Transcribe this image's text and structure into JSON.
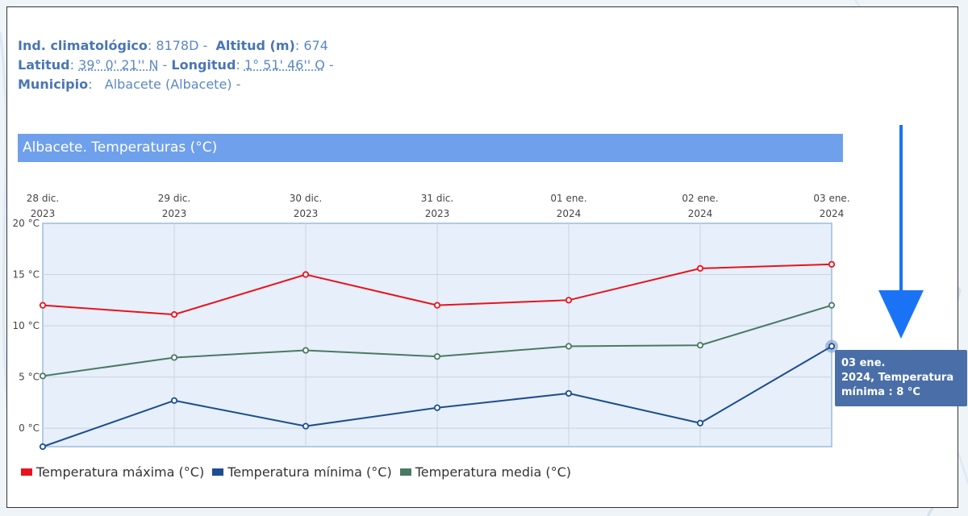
{
  "station": {
    "indicativo_label": "Ind. climatológico",
    "indicativo_value": "8178D",
    "altitud_label": "Altitud (m)",
    "altitud_value": "674",
    "latitud_label": "Latitud",
    "latitud_value": "39° 0' 21'' N",
    "longitud_label": "Longitud",
    "longitud_value": "1° 51' 46'' O",
    "municipio_label": "Municipio",
    "municipio_value": "Albacete (Albacete)",
    "separator": " -"
  },
  "colors": {
    "max": "#e8131c",
    "min": "#1d4e8f",
    "media": "#4a7a63",
    "plot_bg": "#e7effa",
    "header": "#6fa0ec",
    "arrow": "#1a73f5"
  },
  "chart_data": {
    "type": "line",
    "title": "Albacete. Temperaturas (°C)",
    "x": [
      {
        "line1": "28 dic.",
        "line2": "2023"
      },
      {
        "line1": "29 dic.",
        "line2": "2023"
      },
      {
        "line1": "30 dic.",
        "line2": "2023"
      },
      {
        "line1": "31 dic.",
        "line2": "2023"
      },
      {
        "line1": "01 ene.",
        "line2": "2024"
      },
      {
        "line1": "02 ene.",
        "line2": "2024"
      },
      {
        "line1": "03 ene.",
        "line2": "2024"
      }
    ],
    "yticks": [
      "20 °C",
      "15 °C",
      "10 °C",
      "5 °C",
      "0 °C"
    ],
    "ylim": [
      -1.8,
      20
    ],
    "grid": true,
    "legend_position": "bottom-left",
    "series": [
      {
        "name": "Temperatura máxima (°C)",
        "color_key": "max",
        "values": [
          12,
          11.1,
          15,
          12,
          12.5,
          15.6,
          16
        ]
      },
      {
        "name": "Temperatura mínima (°C)",
        "color_key": "min",
        "values": [
          -1.8,
          2.7,
          0.2,
          2,
          3.4,
          0.5,
          8
        ]
      },
      {
        "name": "Temperatura media (°C)",
        "color_key": "media",
        "values": [
          5.1,
          6.9,
          7.6,
          7,
          8,
          8.1,
          12
        ]
      }
    ],
    "highlight": {
      "series": 1,
      "index": 6
    },
    "tooltip": {
      "line1": "03 ene.",
      "line2": "2024, Temperatura",
      "line3": "mínima : 8 °C"
    }
  }
}
